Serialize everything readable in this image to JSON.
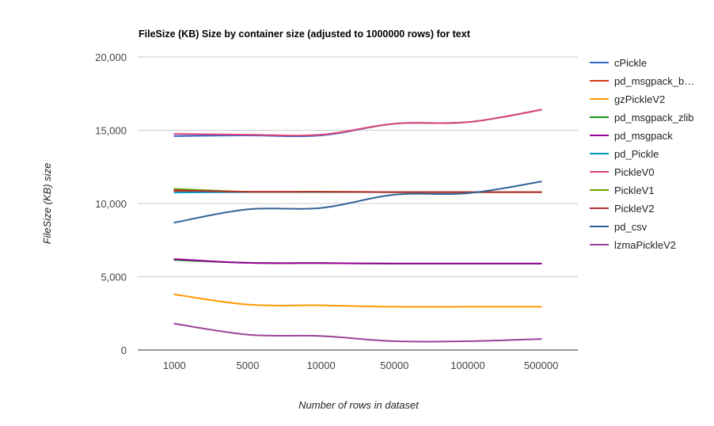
{
  "chart_data": {
    "type": "line",
    "title": "FileSize (KB) Size by container size (adjusted to 1000000 rows) for text",
    "xlabel": "Number of rows in dataset",
    "ylabel": "FileSize (KB) size",
    "categories": [
      "1000",
      "5000",
      "10000",
      "50000",
      "100000",
      "500000"
    ],
    "ylim": [
      0,
      20000
    ],
    "yticks": [
      0,
      5000,
      10000,
      15000,
      20000
    ],
    "ytick_labels": [
      "0",
      "5,000",
      "10,000",
      "15,000",
      "20,000"
    ],
    "grid": true,
    "legend_position": "right",
    "series": [
      {
        "name": "cPickle",
        "color": "#3366cc",
        "values": [
          14600,
          14650,
          14650,
          15450,
          15550,
          16400
        ]
      },
      {
        "name": "pd_msgpack_b…",
        "color": "#dc3912",
        "values": [
          10850,
          10800,
          10800,
          10780,
          10780,
          10780
        ]
      },
      {
        "name": "gzPickleV2",
        "color": "#ff9900",
        "values": [
          3800,
          3100,
          3050,
          2950,
          2950,
          2950
        ]
      },
      {
        "name": "pd_msgpack_zlib",
        "color": "#109618",
        "values": [
          6150,
          5950,
          5930,
          5900,
          5900,
          5900
        ]
      },
      {
        "name": "pd_msgpack",
        "color": "#990099",
        "values": [
          6200,
          5950,
          5930,
          5900,
          5900,
          5900
        ]
      },
      {
        "name": "pd_Pickle",
        "color": "#0099c6",
        "values": [
          10750,
          10780,
          10780,
          10780,
          10780,
          10780
        ]
      },
      {
        "name": "PickleV0",
        "color": "#dd4477",
        "values": [
          14750,
          14700,
          14700,
          15450,
          15550,
          16400
        ]
      },
      {
        "name": "PickleV1",
        "color": "#66aa00",
        "values": [
          11000,
          10800,
          10800,
          10780,
          10780,
          10780
        ]
      },
      {
        "name": "PickleV2",
        "color": "#b82e2e",
        "values": [
          10900,
          10800,
          10800,
          10780,
          10780,
          10780
        ]
      },
      {
        "name": "pd_csv",
        "color": "#316395",
        "values": [
          8700,
          9600,
          9700,
          10600,
          10700,
          11500
        ]
      },
      {
        "name": "lzmaPickleV2",
        "color": "#994499",
        "values": [
          1800,
          1050,
          950,
          600,
          600,
          750
        ]
      }
    ]
  }
}
